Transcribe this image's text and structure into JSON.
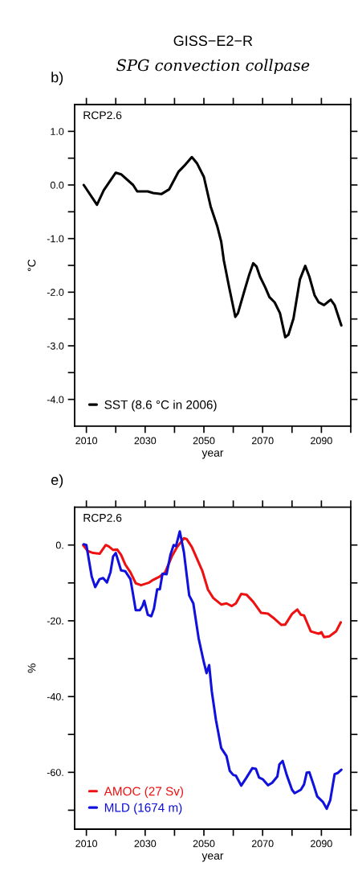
{
  "chart_data": [
    {
      "type": "line",
      "title": "GISS−E2−R",
      "subtitle": "SPG convection collpase",
      "xlabel": "year",
      "ylabel": "°C",
      "annotations": [
        "b)",
        "RCP2.6"
      ],
      "xlim": [
        2006,
        2100
      ],
      "xticks": [
        2010,
        {
          "value": 2020,
          "label": null
        },
        2030,
        {
          "value": 2040,
          "label": null
        },
        2050,
        {
          "value": 2060,
          "label": null
        },
        2070,
        {
          "value": 2080,
          "label": null
        },
        2090,
        {
          "value": 2100,
          "label": null
        }
      ],
      "ylim": [
        -4.5,
        1.5
      ],
      "yticks": [
        {
          "value": 1.0,
          "label": "1.0"
        },
        {
          "value": 0.5,
          "label": null
        },
        {
          "value": 0.0,
          "label": "0.0"
        },
        {
          "value": -0.5,
          "label": null
        },
        {
          "value": -1.0,
          "label": "-1.0"
        },
        {
          "value": -1.5,
          "label": null
        },
        {
          "value": -2.0,
          "label": "-2.0"
        },
        {
          "value": -2.5,
          "label": null
        },
        {
          "value": -3.0,
          "label": "-3.0"
        },
        {
          "value": -3.5,
          "label": null
        },
        {
          "value": -4.0,
          "label": "-4.0"
        }
      ],
      "grid": false,
      "legend": "bottom left",
      "marker": "none",
      "line_style": "solid",
      "series": [
        {
          "name": "SST (8.6 °C in 2006)",
          "color": "#000000",
          "x": [
            2009.1,
            2013.6,
            2015.9,
            2020,
            2021.8,
            2025.9,
            2027.3,
            2030.9,
            2032.7,
            2035.5,
            2038.2,
            2041.4,
            2043.2,
            2045.9,
            2047.7,
            2050,
            2052.3,
            2054.5,
            2055.9,
            2056.8,
            2058.6,
            2060.7,
            2061.6,
            2063.6,
            2065.5,
            2066.8,
            2067.9,
            2069.1,
            2070.9,
            2072.3,
            2074.1,
            2075.9,
            2077.7,
            2078.8,
            2080.5,
            2082.7,
            2084.5,
            2085.9,
            2087.7,
            2089.1,
            2090.9,
            2092.7,
            2093.2,
            2094.5,
            2096.8
          ],
          "values": [
            0.0,
            -0.37,
            -0.1,
            0.23,
            0.2,
            0.0,
            -0.12,
            -0.12,
            -0.15,
            -0.17,
            -0.08,
            0.25,
            0.35,
            0.52,
            0.4,
            0.15,
            -0.4,
            -0.76,
            -1.06,
            -1.41,
            -1.91,
            -2.46,
            -2.39,
            -2.01,
            -1.66,
            -1.46,
            -1.52,
            -1.71,
            -1.91,
            -2.09,
            -2.19,
            -2.39,
            -2.84,
            -2.79,
            -2.49,
            -1.76,
            -1.51,
            -1.71,
            -2.06,
            -2.19,
            -2.24,
            -2.16,
            -2.14,
            -2.24,
            -2.62
          ]
        }
      ]
    },
    {
      "type": "line",
      "xlabel": "year",
      "ylabel": "%",
      "annotations": [
        "e)",
        "RCP2.6"
      ],
      "xlim": [
        2006,
        2100
      ],
      "xticks": [
        2010,
        {
          "value": 2020,
          "label": null
        },
        2030,
        {
          "value": 2040,
          "label": null
        },
        2050,
        {
          "value": 2060,
          "label": null
        },
        2070,
        {
          "value": 2080,
          "label": null
        },
        2090,
        {
          "value": 2100,
          "label": null
        }
      ],
      "ylim": [
        -75,
        10
      ],
      "yticks": [
        {
          "value": 0,
          "label": "0."
        },
        {
          "value": -10,
          "label": null
        },
        {
          "value": -20,
          "label": "-20."
        },
        {
          "value": -30,
          "label": null
        },
        {
          "value": -40,
          "label": "-40."
        },
        {
          "value": -50,
          "label": null
        },
        {
          "value": -60,
          "label": "-60."
        },
        {
          "value": -70,
          "label": null
        }
      ],
      "grid": false,
      "legend": "bottom left",
      "marker": "none",
      "line_style": "solid",
      "series": [
        {
          "name": "AMOC (27 Sv)",
          "color": "#ee1111",
          "x": [
            2008.9,
            2010.5,
            2012.3,
            2014.5,
            2016.6,
            2017.7,
            2019.1,
            2020.5,
            2021.8,
            2023.2,
            2025,
            2026.8,
            2028.6,
            2031.4,
            2032.7,
            2035,
            2036.8,
            2039.1,
            2040.9,
            2043.2,
            2044.1,
            2045.9,
            2047.7,
            2049.5,
            2051.4,
            2053.2,
            2055.9,
            2057.7,
            2059.5,
            2060.9,
            2062.7,
            2064.5,
            2066.8,
            2069.5,
            2071.8,
            2074.1,
            2076.4,
            2077.7,
            2080,
            2081.8,
            2083,
            2084.1,
            2086.4,
            2089.1,
            2090,
            2090.9,
            2092.7,
            2095,
            2096.6
          ],
          "values": [
            0,
            -1.6,
            -2.1,
            -2.3,
            0,
            -0.4,
            -1.3,
            -1.2,
            -2.6,
            -5.1,
            -7.2,
            -10.1,
            -10.6,
            -9.9,
            -9.2,
            -8.3,
            -7.2,
            -3.0,
            -0.5,
            1.8,
            1.6,
            -0.5,
            -3.7,
            -6.9,
            -11.8,
            -14.0,
            -15.7,
            -15.4,
            -16.1,
            -15.4,
            -12.9,
            -13.1,
            -15.0,
            -17.9,
            -18.1,
            -19.5,
            -21.1,
            -21.0,
            -18.2,
            -17.0,
            -18.4,
            -18.6,
            -22.8,
            -23.4,
            -23.0,
            -24.3,
            -24.1,
            -22.8,
            -20.4
          ]
        },
        {
          "name": "MLD (1674 m)",
          "color": "#1111dd",
          "x": [
            2009.1,
            2010,
            2011.8,
            2013,
            2014.5,
            2015.7,
            2017,
            2018.2,
            2019.1,
            2020,
            2021.8,
            2023.2,
            2025,
            2026.8,
            2028.2,
            2029.1,
            2029.7,
            2030.9,
            2032.1,
            2033,
            2034.1,
            2035,
            2035.9,
            2037.3,
            2038.6,
            2039.7,
            2040.5,
            2041.8,
            2043.2,
            2045,
            2046.4,
            2048.2,
            2050,
            2050.9,
            2051.8,
            2052.7,
            2054.1,
            2055.9,
            2057.7,
            2058.8,
            2060,
            2060.9,
            2062.7,
            2064.5,
            2066.5,
            2067.7,
            2068.8,
            2070,
            2071.8,
            2073.2,
            2075,
            2075.7,
            2076.8,
            2078.2,
            2080,
            2080.9,
            2083,
            2084.1,
            2085,
            2085.9,
            2087.3,
            2088.6,
            2090.5,
            2091.8,
            2093,
            2094.5,
            2095.5,
            2096.8
          ],
          "values": [
            0.2,
            0,
            -8.3,
            -11.1,
            -9.0,
            -8.7,
            -9.9,
            -7.2,
            -3.0,
            -2.1,
            -6.7,
            -6.9,
            -9.0,
            -17.2,
            -17.2,
            -16.1,
            -14.7,
            -18.4,
            -18.8,
            -16.8,
            -11.7,
            -11.7,
            -7.6,
            -7.7,
            -2.6,
            0,
            -0.3,
            3.6,
            -1.9,
            -13.3,
            -15.4,
            -24.6,
            -31,
            -33.8,
            -31.7,
            -38.7,
            -46.2,
            -53.6,
            -55.7,
            -59.6,
            -60.7,
            -60.9,
            -63.5,
            -61.4,
            -58.9,
            -59.1,
            -61.4,
            -61.8,
            -63.4,
            -62.8,
            -61.1,
            -57.9,
            -57.0,
            -60.7,
            -64.6,
            -65.5,
            -64.6,
            -63.2,
            -60.1,
            -60.0,
            -63.2,
            -66.4,
            -67.8,
            -69.6,
            -67.4,
            -60.5,
            -60.2,
            -59.3
          ]
        }
      ]
    }
  ]
}
